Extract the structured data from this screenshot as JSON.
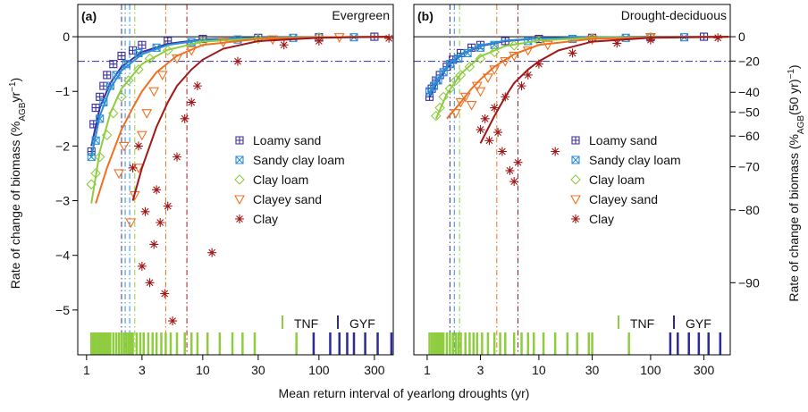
{
  "xlabel": "Mean return interval of yearlong droughts (yr)",
  "ylabel": [
    "Rate of change of biomass (%",
    "AGB",
    "yr",
    "−1",
    ")"
  ],
  "y2label": [
    "Rate of change of biomass (%",
    "AGB",
    "(50 yr)",
    "−1",
    ")"
  ],
  "chart_data": [
    {
      "type": "scatter",
      "panel": "(a)",
      "title": "Evergreen",
      "log_x": true,
      "legend": "right",
      "xlim": [
        0.84,
        436
      ],
      "ylim": [
        -5.82,
        0.59
      ],
      "xticks": [
        1,
        3,
        10,
        30,
        100,
        300
      ],
      "yticks": [
        0,
        {
          "value": -1,
          "label": "−1"
        },
        {
          "value": -2,
          "label": "−2"
        },
        {
          "value": -3,
          "label": "−3"
        },
        {
          "value": -4,
          "label": "−4"
        },
        {
          "value": -5,
          "label": "−5"
        }
      ],
      "hline": {
        "y": -0.45,
        "color": "#3030a0"
      },
      "vlines": [
        {
          "x": 2.0,
          "color": "#3a2f9e"
        },
        {
          "x": 2.15,
          "color": "#2a8fd6"
        },
        {
          "x": 2.35,
          "color": "#2a8fd6"
        },
        {
          "x": 2.6,
          "color": "#8fcc3f"
        },
        {
          "x": 4.8,
          "color": "#f07020"
        },
        {
          "x": 7.3,
          "color": "#b01818"
        }
      ],
      "series": [
        {
          "name": "Loamy sand",
          "color": "#3a2f9e",
          "marker": "square-plus",
          "x": [
            1.1,
            1.15,
            1.2,
            1.3,
            1.4,
            1.5,
            1.7,
            2,
            2.5,
            3,
            5,
            10,
            30,
            100,
            300
          ],
          "values": [
            -2.1,
            -1.6,
            -1.3,
            -1.1,
            -0.9,
            -0.7,
            -0.5,
            -0.35,
            -0.25,
            -0.15,
            -0.08,
            -0.04,
            -0.02,
            -0.01,
            0
          ],
          "fit": {
            "x": [
              1.1,
              1.3,
              1.6,
              2,
              3,
              5,
              10,
              30,
              100,
              400
            ],
            "values": [
              -2.0,
              -1.3,
              -0.85,
              -0.55,
              -0.28,
              -0.13,
              -0.05,
              -0.02,
              -0.01,
              0
            ]
          }
        },
        {
          "name": "Sandy clay loam",
          "color": "#2a8fd6",
          "marker": "square-x",
          "x": [
            1.1,
            1.2,
            1.3,
            1.4,
            1.6,
            1.8,
            2.2,
            2.8,
            4,
            8,
            20,
            60,
            200
          ],
          "values": [
            -2.2,
            -1.9,
            -1.5,
            -1.2,
            -0.9,
            -0.7,
            -0.5,
            -0.3,
            -0.2,
            -0.1,
            -0.05,
            -0.02,
            -0.01
          ],
          "fit": {
            "x": [
              1.1,
              1.3,
              1.6,
              2,
              3,
              5,
              10,
              30,
              100,
              400
            ],
            "values": [
              -2.2,
              -1.45,
              -0.95,
              -0.62,
              -0.32,
              -0.15,
              -0.06,
              -0.02,
              -0.01,
              0
            ]
          }
        },
        {
          "name": "Clay loam",
          "color": "#8fcc3f",
          "marker": "diamond",
          "x": [
            1.1,
            1.2,
            1.3,
            1.5,
            1.7,
            2,
            2.3,
            2.8,
            3.5,
            5,
            10,
            30,
            100
          ],
          "values": [
            -2.7,
            -2.5,
            -2.2,
            -1.8,
            -1.4,
            -1.1,
            -0.8,
            -0.6,
            -0.4,
            -0.25,
            -0.1,
            -0.04,
            -0.01
          ],
          "fit": {
            "x": [
              1.1,
              1.3,
              1.6,
              2,
              3,
              5,
              10,
              30,
              100,
              400
            ],
            "values": [
              -3.05,
              -2.1,
              -1.4,
              -0.95,
              -0.5,
              -0.24,
              -0.09,
              -0.03,
              -0.01,
              0
            ]
          }
        },
        {
          "name": "Clayey sand",
          "color": "#f07020",
          "marker": "triangle",
          "x": [
            1.9,
            2.1,
            2.4,
            2.6,
            2.8,
            3,
            3.3,
            3.8,
            4.5,
            6,
            8,
            15,
            40,
            150
          ],
          "values": [
            -2.5,
            -2.0,
            -3.4,
            -2.9,
            -2.4,
            -1.8,
            -1.4,
            -1.0,
            -0.7,
            -0.4,
            -0.25,
            -0.1,
            -0.05,
            -0.01
          ],
          "fit": {
            "x": [
              1.2,
              1.5,
              2,
              2.5,
              3,
              4,
              6,
              10,
              30,
              100,
              400
            ],
            "values": [
              -3.05,
              -2.4,
              -1.7,
              -1.3,
              -1.0,
              -0.65,
              -0.35,
              -0.15,
              -0.04,
              -0.01,
              0
            ]
          }
        },
        {
          "name": "Clay",
          "color": "#a01818",
          "marker": "asterisk",
          "x": [
            2.5,
            2.8,
            3,
            3.2,
            3.5,
            3.8,
            4,
            4.3,
            4.7,
            5,
            5.5,
            6,
            7,
            8,
            9,
            12,
            20,
            50,
            100,
            400
          ],
          "values": [
            -2.4,
            -2.0,
            -4.2,
            -3.2,
            -4.5,
            -3.8,
            -2.8,
            -3.4,
            -4.7,
            -3.1,
            -5.2,
            -2.2,
            -1.5,
            -1.2,
            -0.9,
            -3.95,
            -0.45,
            -0.15,
            -0.08,
            -0.03
          ],
          "fit": {
            "x": [
              2.5,
              3,
              4,
              5,
              6,
              8,
              10,
              15,
              30,
              100,
              400
            ],
            "values": [
              -3.0,
              -2.4,
              -1.65,
              -1.2,
              -0.9,
              -0.6,
              -0.42,
              -0.22,
              -0.08,
              -0.02,
              0
            ]
          }
        }
      ],
      "rugs": [
        {
          "name": "TNF",
          "color": "#8fcc3f",
          "x": [
            1.1,
            1.15,
            1.2,
            1.25,
            1.3,
            1.35,
            1.4,
            1.45,
            1.5,
            1.55,
            1.6,
            1.7,
            1.8,
            1.9,
            2.0,
            2.1,
            2.2,
            2.3,
            2.4,
            2.5,
            2.7,
            2.9,
            3.1,
            3.4,
            3.7,
            4,
            4.4,
            4.8,
            5.3,
            6,
            7,
            8,
            9,
            11,
            14,
            18,
            22,
            28,
            64
          ]
        },
        {
          "name": "GYF",
          "color": "#2a2a9a",
          "x": [
            90,
            125,
            150,
            175,
            200,
            250,
            320,
            420
          ]
        }
      ]
    },
    {
      "type": "scatter",
      "panel": "(b)",
      "title": "Drought-deciduous",
      "log_x": true,
      "legend": "right",
      "xlim": [
        0.76,
        516
      ],
      "ylim": [
        -5.82,
        0.59
      ],
      "y2_years": 50,
      "y2ticks": [
        0,
        {
          "value": -20,
          "label": "−20"
        },
        {
          "value": -40,
          "label": "−40"
        },
        {
          "value": -50,
          "label": "−50"
        },
        {
          "value": -60,
          "label": "−60"
        },
        {
          "value": -70,
          "label": "−70"
        },
        {
          "value": -80,
          "label": "−80"
        },
        {
          "value": -90,
          "label": "−90"
        }
      ],
      "xticks": [
        1,
        3,
        10,
        30,
        100,
        300
      ],
      "hline": {
        "y": -0.45,
        "color": "#3030a0"
      },
      "vlines": [
        {
          "x": 1.6,
          "color": "#3a2f9e"
        },
        {
          "x": 1.75,
          "color": "#2a8fd6"
        },
        {
          "x": 1.95,
          "color": "#8fcc3f"
        },
        {
          "x": 4.2,
          "color": "#f07020"
        },
        {
          "x": 6.5,
          "color": "#b01818"
        }
      ],
      "series": [
        {
          "name": "Loamy sand",
          "color": "#3a2f9e",
          "marker": "square-plus",
          "x": [
            1.05,
            1.1,
            1.2,
            1.3,
            1.5,
            1.7,
            2,
            2.5,
            3,
            5,
            10,
            30,
            100,
            300
          ],
          "values": [
            -1.1,
            -0.95,
            -0.8,
            -0.7,
            -0.55,
            -0.42,
            -0.3,
            -0.2,
            -0.15,
            -0.08,
            -0.04,
            -0.02,
            -0.01,
            0
          ],
          "fit": {
            "x": [
              1.05,
              1.3,
              1.6,
              2,
              3,
              5,
              10,
              30,
              100,
              500
            ],
            "values": [
              -1.1,
              -0.75,
              -0.5,
              -0.33,
              -0.17,
              -0.08,
              -0.03,
              -0.01,
              0,
              0
            ]
          }
        },
        {
          "name": "Sandy clay loam",
          "color": "#2a8fd6",
          "marker": "square-x",
          "x": [
            1.05,
            1.15,
            1.25,
            1.4,
            1.6,
            1.9,
            2.3,
            3,
            4,
            8,
            20,
            60,
            200
          ],
          "values": [
            -1.0,
            -0.9,
            -0.8,
            -0.65,
            -0.5,
            -0.4,
            -0.3,
            -0.2,
            -0.15,
            -0.08,
            -0.04,
            -0.02,
            -0.01
          ],
          "fit": {
            "x": [
              1.05,
              1.3,
              1.6,
              2,
              3,
              5,
              10,
              30,
              100,
              500
            ],
            "values": [
              -1.05,
              -0.72,
              -0.48,
              -0.32,
              -0.16,
              -0.07,
              -0.03,
              -0.01,
              0,
              0
            ]
          }
        },
        {
          "name": "Clay loam",
          "color": "#8fcc3f",
          "marker": "diamond",
          "x": [
            1.2,
            1.3,
            1.4,
            1.6,
            1.8,
            2,
            2.4,
            3,
            4,
            6,
            10,
            30,
            100
          ],
          "values": [
            -1.45,
            -1.3,
            -1.1,
            -0.95,
            -0.8,
            -0.7,
            -0.55,
            -0.4,
            -0.28,
            -0.16,
            -0.08,
            -0.03,
            -0.01
          ],
          "fit": {
            "x": [
              1.2,
              1.5,
              2,
              3,
              5,
              10,
              30,
              100,
              500
            ],
            "values": [
              -1.5,
              -1.05,
              -0.68,
              -0.36,
              -0.17,
              -0.07,
              -0.02,
              -0.01,
              0
            ]
          }
        },
        {
          "name": "Clayey sand",
          "color": "#f07020",
          "marker": "triangle",
          "x": [
            1.8,
            2,
            2.2,
            2.5,
            2.8,
            3,
            3.5,
            4,
            5,
            6,
            8,
            12,
            30,
            100
          ],
          "values": [
            -1.4,
            -1.2,
            -1.1,
            -1.25,
            -0.9,
            -1.0,
            -0.75,
            -0.6,
            -0.45,
            -0.35,
            -0.25,
            -0.15,
            -0.05,
            -0.01
          ],
          "fit": {
            "x": [
              1.5,
              2,
              2.5,
              3,
              4,
              6,
              10,
              30,
              100,
              500
            ],
            "values": [
              -1.5,
              -1.2,
              -0.95,
              -0.78,
              -0.55,
              -0.32,
              -0.15,
              -0.04,
              -0.01,
              0
            ]
          }
        },
        {
          "name": "Clay",
          "color": "#a01818",
          "marker": "asterisk",
          "x": [
            3,
            3.3,
            3.6,
            4,
            4.3,
            4.7,
            5,
            5.5,
            6,
            6.5,
            7,
            8,
            10,
            14,
            20,
            50,
            100,
            400
          ],
          "values": [
            -1.7,
            -1.5,
            -1.9,
            -1.3,
            -1.75,
            -2.1,
            -1.1,
            -2.45,
            -2.65,
            -2.3,
            -0.9,
            -0.7,
            -0.5,
            -2.1,
            -0.3,
            -0.12,
            -0.06,
            -0.02
          ],
          "fit": {
            "x": [
              3,
              4,
              5,
              6,
              8,
              10,
              15,
              30,
              100,
              500
            ],
            "values": [
              -1.95,
              -1.45,
              -1.1,
              -0.85,
              -0.6,
              -0.45,
              -0.25,
              -0.09,
              -0.02,
              0
            ]
          }
        }
      ],
      "rugs": [
        {
          "name": "TNF",
          "color": "#8fcc3f",
          "x": [
            1.05,
            1.1,
            1.15,
            1.2,
            1.25,
            1.3,
            1.35,
            1.4,
            1.5,
            1.6,
            1.7,
            1.8,
            1.9,
            2.0,
            2.2,
            2.4,
            2.6,
            2.8,
            3.1,
            3.5,
            4,
            4.5,
            5,
            6,
            7,
            8,
            9,
            11,
            14,
            18,
            22,
            28,
            30,
            64
          ]
        },
        {
          "name": "GYF",
          "color": "#2a2a9a",
          "x": [
            150,
            175,
            220,
            270,
            330,
            420
          ]
        }
      ]
    }
  ]
}
